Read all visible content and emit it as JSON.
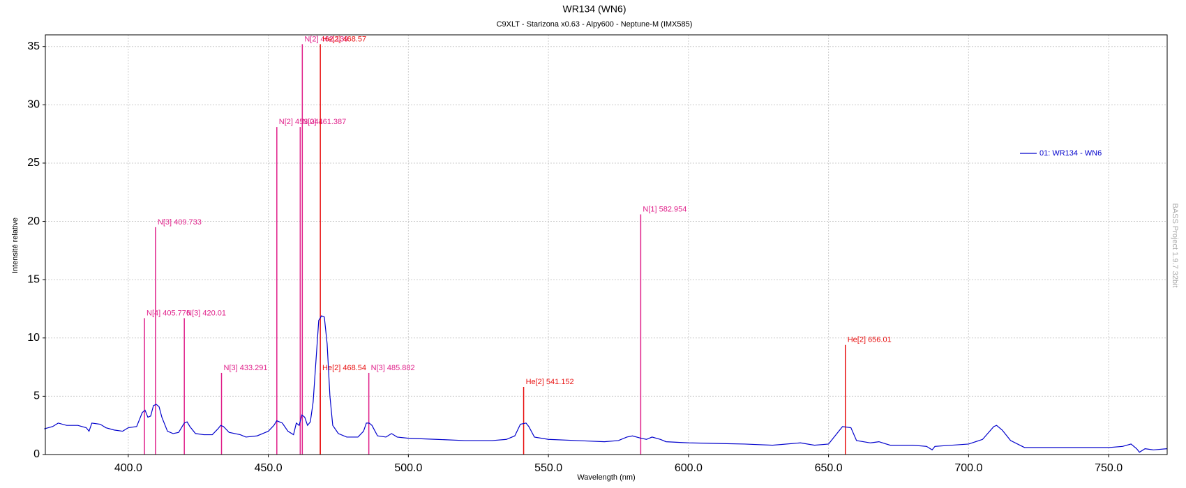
{
  "chart_data": {
    "type": "line",
    "title": "WR134 (WN6)",
    "subtitle": "C9XLT - Starizona x0.63 - Alpy600 - Neptune-M (IMX585)",
    "x_label": "Wavelength (nm)",
    "y_label": "Intensité relative",
    "watermark": "BASS Project 1.9.7  32bit",
    "xlim": [
      370.4,
      770.9
    ],
    "ylim": [
      0,
      36
    ],
    "xticks": [
      {
        "value": 400,
        "label": "400.0"
      },
      {
        "value": 450,
        "label": "450.0"
      },
      {
        "value": 500,
        "label": "500.0"
      },
      {
        "value": 550,
        "label": "550.0"
      },
      {
        "value": 600,
        "label": "600.0"
      },
      {
        "value": 650,
        "label": "650.0"
      },
      {
        "value": 700,
        "label": "700.0"
      },
      {
        "value": 750,
        "label": "750.0"
      }
    ],
    "yticks": [
      0,
      5,
      10,
      15,
      20,
      25,
      30,
      35
    ],
    "grid": true,
    "legend": "upper-right",
    "x": [
      370,
      373,
      375,
      378,
      382,
      385,
      386,
      387,
      390,
      392,
      395,
      398,
      400,
      403,
      405,
      406,
      407,
      408,
      409,
      410,
      411,
      412,
      414,
      416,
      418,
      420,
      421,
      422,
      424,
      427,
      430,
      432,
      433,
      434,
      436,
      440,
      442,
      446,
      450,
      452,
      453,
      455,
      457,
      459,
      460,
      461,
      462,
      463,
      464,
      465,
      466,
      467,
      468,
      469,
      470,
      471,
      472,
      473,
      475,
      478,
      482,
      484,
      485,
      486,
      487,
      489,
      492,
      494,
      496,
      500,
      510,
      520,
      530,
      535,
      538,
      540,
      542,
      543,
      545,
      550,
      560,
      570,
      575,
      578,
      580,
      583,
      585,
      587,
      590,
      592,
      600,
      620,
      630,
      640,
      645,
      650,
      653,
      655,
      658,
      660,
      665,
      668,
      672,
      680,
      685,
      687,
      688,
      700,
      705,
      709,
      710,
      712,
      715,
      720,
      730,
      740,
      750,
      755,
      758,
      760,
      761,
      763,
      766,
      770.9
    ],
    "series": [
      {
        "name": "01: WR134 - WN6",
        "color": "#0000cc",
        "values": [
          2.2,
          2.4,
          2.7,
          2.5,
          2.5,
          2.3,
          2.0,
          2.7,
          2.6,
          2.3,
          2.1,
          2.0,
          2.3,
          2.4,
          3.6,
          3.8,
          3.2,
          3.3,
          4.2,
          4.3,
          4.1,
          3.2,
          2.0,
          1.8,
          1.9,
          2.7,
          2.8,
          2.4,
          1.8,
          1.7,
          1.7,
          2.2,
          2.5,
          2.4,
          1.9,
          1.7,
          1.5,
          1.6,
          2.0,
          2.5,
          2.9,
          2.7,
          2.0,
          1.7,
          2.7,
          2.5,
          3.4,
          3.2,
          2.5,
          2.8,
          4.5,
          8.0,
          11.5,
          11.9,
          11.8,
          9.5,
          5.0,
          2.5,
          1.8,
          1.5,
          1.5,
          2.0,
          2.7,
          2.7,
          2.5,
          1.6,
          1.5,
          1.8,
          1.5,
          1.4,
          1.3,
          1.2,
          1.2,
          1.3,
          1.6,
          2.6,
          2.7,
          2.4,
          1.5,
          1.3,
          1.2,
          1.1,
          1.2,
          1.5,
          1.6,
          1.4,
          1.3,
          1.5,
          1.3,
          1.1,
          1.0,
          0.9,
          0.8,
          1.0,
          0.8,
          0.9,
          1.8,
          2.4,
          2.3,
          1.2,
          1.0,
          1.1,
          0.8,
          0.8,
          0.7,
          0.4,
          0.7,
          0.9,
          1.3,
          2.4,
          2.5,
          2.1,
          1.2,
          0.6,
          0.6,
          0.6,
          0.6,
          0.7,
          0.9,
          0.5,
          0.2,
          0.5,
          0.4,
          0.5
        ]
      }
    ],
    "emission_lines": [
      {
        "label": "N[4] 405.776",
        "wavelength": 405.776,
        "height": 11.7,
        "color": "#e0208a"
      },
      {
        "label": "N[3] 409.733",
        "wavelength": 409.733,
        "height": 19.5,
        "color": "#e0208a"
      },
      {
        "label": "N[3] 420.01",
        "wavelength": 420.01,
        "height": 11.7,
        "color": "#e0208a"
      },
      {
        "label": "N[3] 433.291",
        "wavelength": 433.291,
        "height": 7.0,
        "color": "#e0208a"
      },
      {
        "label": "N[2] 453.041",
        "wavelength": 453.041,
        "height": 28.1,
        "color": "#e0208a"
      },
      {
        "label": "N[2] 461.387",
        "wavelength": 461.387,
        "height": 28.1,
        "color": "#e0208a"
      },
      {
        "label": "N[2] 462.139",
        "wavelength": 462.139,
        "height": 35.2,
        "color": "#e0208a"
      },
      {
        "label": "He[2] 468.57",
        "wavelength": 468.57,
        "height": 35.2,
        "color": "#e81010"
      },
      {
        "label": "He[2] 468.54",
        "wavelength": 468.54,
        "height": 7.0,
        "color": "#e81010"
      },
      {
        "label": "N[3] 485.882",
        "wavelength": 485.882,
        "height": 7.0,
        "color": "#e0208a"
      },
      {
        "label": "He[2] 541.152",
        "wavelength": 541.152,
        "height": 5.8,
        "color": "#e81010"
      },
      {
        "label": "N[1] 582.954",
        "wavelength": 582.954,
        "height": 20.6,
        "color": "#e0208a"
      },
      {
        "label": "He[2] 656.01",
        "wavelength": 656.01,
        "height": 9.4,
        "color": "#e81010"
      }
    ]
  }
}
